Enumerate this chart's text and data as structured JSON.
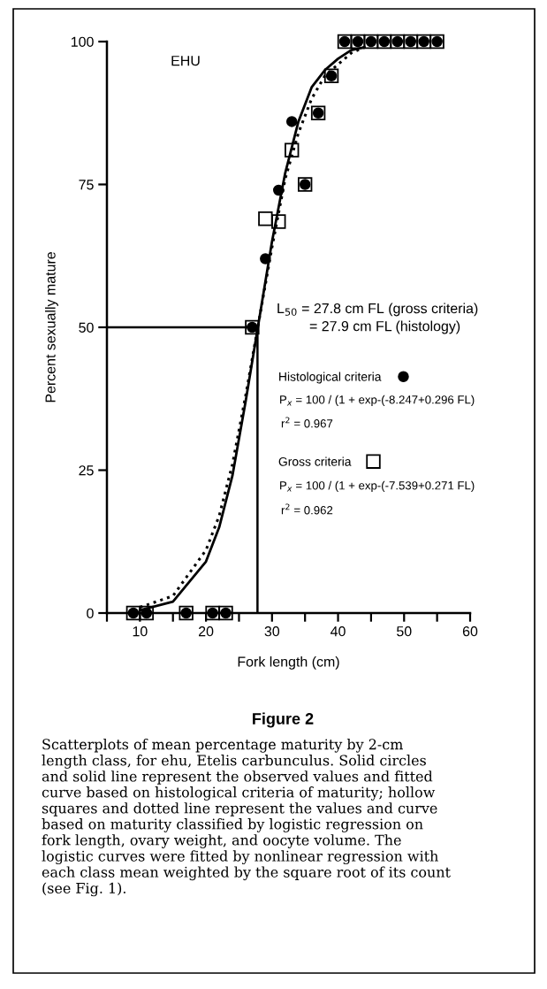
{
  "chart_data": {
    "type": "scatter",
    "title": "Figure 2",
    "xlabel": "Fork length (cm)",
    "ylabel": "Percent sexually mature",
    "xlim": [
      5,
      60
    ],
    "ylim": [
      0,
      100
    ],
    "xticks": [
      {
        "value": 5,
        "label": null
      },
      10,
      {
        "value": 15,
        "label": null
      },
      20,
      {
        "value": 25,
        "label": null
      },
      30,
      {
        "value": 35,
        "label": null
      },
      40,
      {
        "value": 45,
        "label": null
      },
      50,
      {
        "value": 55,
        "label": null
      },
      60
    ],
    "yticks": [
      0,
      25,
      50,
      75,
      100
    ],
    "grid": false,
    "legend": "right",
    "ref_lines": [
      {
        "axis": "x",
        "value": 27.8,
        "color": "#000000"
      },
      {
        "axis": "y",
        "value": 50,
        "color": "#000000"
      }
    ],
    "series": [
      {
        "name": "Histological criteria",
        "marker": "circle",
        "color": "#000000",
        "x": [
          9,
          11,
          17,
          21,
          23,
          27,
          29,
          31,
          33,
          35,
          37,
          39,
          41,
          43,
          45,
          47,
          49,
          51,
          53,
          55
        ],
        "values": [
          0,
          0,
          0,
          0,
          0,
          50,
          62,
          74,
          86,
          75,
          87.5,
          94,
          100,
          100,
          100,
          100,
          100,
          100,
          100,
          100
        ]
      },
      {
        "name": "Gross criteria",
        "marker": "square",
        "color": "#000000",
        "x": [
          9,
          11,
          17,
          21,
          23,
          27,
          29,
          31,
          33,
          35,
          37,
          39,
          41,
          43,
          45,
          47,
          49,
          51,
          53,
          55
        ],
        "values": [
          0,
          0,
          0,
          0,
          0,
          50,
          69,
          68.5,
          81,
          75,
          87.5,
          94,
          100,
          100,
          100,
          100,
          100,
          100,
          100,
          100
        ]
      },
      {
        "type": "line",
        "line_style": "solid",
        "color": "#000000",
        "x": [
          10,
          15,
          20,
          22,
          24,
          26,
          28,
          30,
          32,
          34,
          36,
          38,
          40,
          42,
          44
        ],
        "values": [
          0.5,
          2,
          9,
          15,
          24,
          37,
          51,
          65,
          77,
          86,
          92,
          95,
          97,
          98.5,
          99
        ]
      },
      {
        "type": "line",
        "line_style": "dotted",
        "color": "#000000",
        "x": [
          10,
          15,
          20,
          22,
          24,
          26,
          28,
          30,
          32,
          34,
          36,
          38,
          40,
          42,
          44
        ],
        "values": [
          1,
          3,
          11,
          17,
          26,
          38,
          51,
          64,
          76,
          84,
          90,
          94,
          96,
          98,
          99
        ]
      }
    ],
    "annotations": [
      "EHU",
      "L$_{50}$ = 27.8 cm FL (gross criteria)",
      "= 27.9 cm FL (histology)",
      "P$_{x}$ = 100 / (1 + exp-(-8.247+0.296 FL)",
      "r$^{2}$ = 0.967",
      "P$_{x}$ = 100 / (1 + exp-(-7.539+0.271 FL)",
      "r$^{2}$ = 0.962",
      "Scatterplots of mean percentage maturity by 2-cm\nlength class, for ehu, Etelis carbunculus. Solid circles\nand solid line represent the observed values and fitted\ncurve based on histological criteria of maturity; hollow\nsquares and dotted line represent the values and curve\nbased on maturity classified by logistic regression on\nfork length, ovary weight, and oocyte volume. The\nlogistic curves were fitted by nonlinear regression with\neach class mean weighted by the square root of its count\n(see Fig. 1)."
    ]
  }
}
